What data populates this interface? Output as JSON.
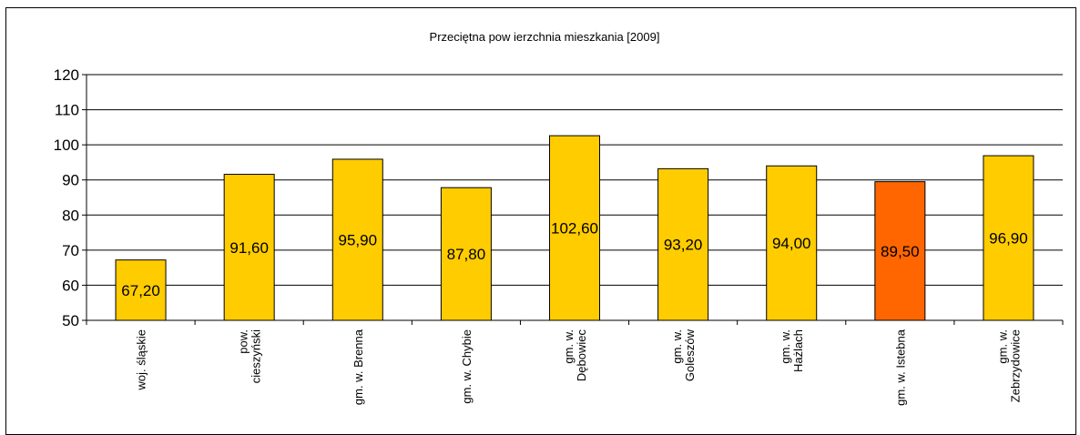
{
  "chart_data": {
    "type": "bar",
    "title": "Przeciętna pow ierzchnia mieszkania [2009]",
    "xlabel": "",
    "ylabel": "",
    "ylim": [
      50,
      120
    ],
    "yticks": [
      50,
      60,
      70,
      80,
      90,
      100,
      110,
      120
    ],
    "grid": true,
    "legend": "none",
    "categories": [
      [
        "woj. śląskie"
      ],
      [
        "pow.",
        "cieszyński"
      ],
      [
        "gm. w. Brenna"
      ],
      [
        "gm. w. Chybie"
      ],
      [
        "gm. w.",
        "Dębowiec"
      ],
      [
        "gm. w.",
        "Goleszów"
      ],
      [
        "gm. w.",
        "Hażlach"
      ],
      [
        "gm. w. Istebna"
      ],
      [
        "gm. w.",
        "Zebrzydowice"
      ]
    ],
    "values": [
      67.2,
      91.6,
      95.9,
      87.8,
      102.6,
      93.2,
      94.0,
      89.5,
      96.9
    ],
    "data_labels": [
      "67,20",
      "91,60",
      "95,90",
      "87,80",
      "102,60",
      "93,20",
      "94,00",
      "89,50",
      "96,90"
    ],
    "colors": {
      "bar": "#FFCC00",
      "highlight": "#FF6600",
      "border": "#000000"
    },
    "highlight_index": 7
  }
}
